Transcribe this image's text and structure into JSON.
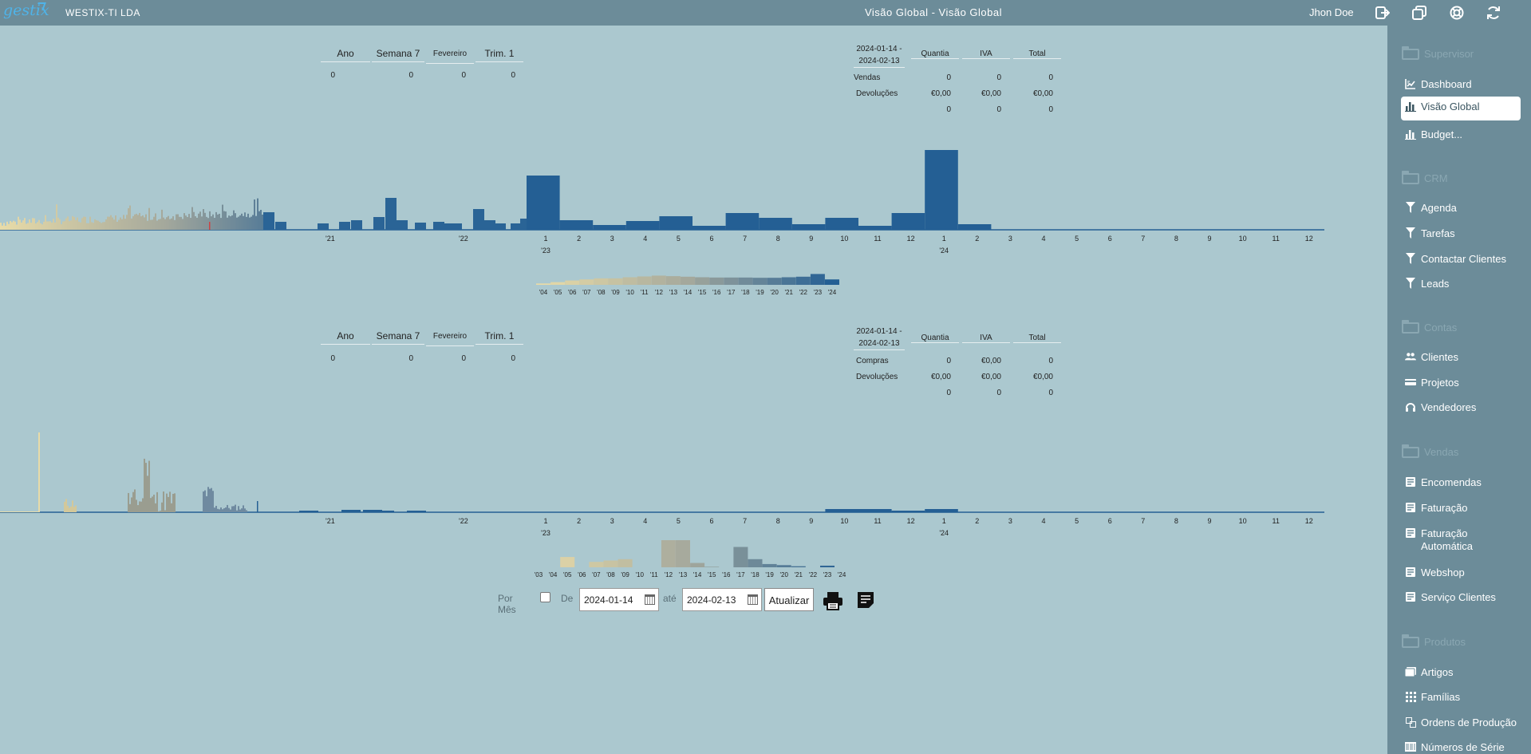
{
  "app": {
    "logo_text": "gestix",
    "company": "WESTIX-TI LDA",
    "title": "Visão Global - Visão Global",
    "user": "Jhon Doe",
    "toolbar_icons": [
      "logout-icon",
      "windows-icon",
      "help-lifebuoy-icon",
      "refresh-icon"
    ]
  },
  "sidebar": {
    "sections": [
      {
        "label": "Supervisor",
        "items": [
          {
            "label": "Dashboard",
            "icon": "dashboard-chart-icon",
            "active": false
          },
          {
            "label": "Visão Global",
            "icon": "bar-chart-icon",
            "active": true
          },
          {
            "label": "Budget...",
            "icon": "bar-chart-icon",
            "active": false
          }
        ]
      },
      {
        "label": "CRM",
        "items": [
          {
            "label": "Agenda",
            "icon": "funnel-icon"
          },
          {
            "label": "Tarefas",
            "icon": "funnel-icon"
          },
          {
            "label": "Contactar Clientes",
            "icon": "funnel-icon"
          },
          {
            "label": "Leads",
            "icon": "funnel-icon"
          }
        ]
      },
      {
        "label": "Contas",
        "items": [
          {
            "label": "Clientes",
            "icon": "users-icon"
          },
          {
            "label": "Projetos",
            "icon": "card-icon"
          },
          {
            "label": "Vendedores",
            "icon": "headset-icon"
          }
        ]
      },
      {
        "label": "Vendas",
        "items": [
          {
            "label": "Encomendas",
            "icon": "document-icon"
          },
          {
            "label": "Faturação",
            "icon": "document-icon"
          },
          {
            "label": "Faturação Automática",
            "icon": "document-icon"
          },
          {
            "label": "Webshop",
            "icon": "document-icon"
          },
          {
            "label": "Serviço Clientes",
            "icon": "document-icon"
          }
        ]
      },
      {
        "label": "Produtos",
        "items": [
          {
            "label": "Artigos",
            "icon": "articles-icon"
          },
          {
            "label": "Famílias",
            "icon": "grid-icon"
          },
          {
            "label": "Ordens de Produção",
            "icon": "production-icon"
          },
          {
            "label": "Números de Série",
            "icon": "barcode-icon"
          }
        ]
      }
    ]
  },
  "sales": {
    "period_headers": [
      "Ano",
      "Semana 7",
      "Fevereiro",
      "Trim. 1"
    ],
    "period_values": [
      "0",
      "0",
      "0",
      "0"
    ],
    "totals": {
      "period": "2024-01-14 - 2024-02-13",
      "headers": [
        "Quantia",
        "IVA",
        "Total"
      ],
      "rows": [
        {
          "label": "Vendas",
          "values": [
            "0",
            "0",
            "0"
          ]
        },
        {
          "label": "Devoluções",
          "values": [
            "€0,00",
            "€0,00",
            "€0,00"
          ]
        },
        {
          "label": "",
          "values": [
            "0",
            "0",
            "0"
          ]
        }
      ]
    }
  },
  "purchases": {
    "period_headers": [
      "Ano",
      "Semana 7",
      "Fevereiro",
      "Trim. 1"
    ],
    "period_values": [
      "0",
      "0",
      "0",
      "0"
    ],
    "totals": {
      "period": "2024-01-14 - 2024-02-13",
      "headers": [
        "Quantia",
        "IVA",
        "Total"
      ],
      "rows": [
        {
          "label": "Compras",
          "values": [
            "0",
            "€0,00",
            "0"
          ]
        },
        {
          "label": "Devoluções",
          "values": [
            "€0,00",
            "€0,00",
            "€0,00"
          ]
        },
        {
          "label": "",
          "values": [
            "0",
            "0",
            "0"
          ]
        }
      ]
    }
  },
  "controls": {
    "per_month_label": "Por Mês",
    "per_month_checked": false,
    "from_label": "De",
    "from_value": "2024-01-14",
    "to_label": "até",
    "to_value": "2024-02-13",
    "update_label": "Atualizar",
    "print_icon": "printer-icon",
    "report_icon": "report-icon"
  },
  "chart_data": [
    {
      "type": "bar",
      "name": "sales-timeline",
      "x_tick_labels": [
        "'21",
        "'22",
        "1",
        "2",
        "3",
        "4",
        "5",
        "6",
        "7",
        "8",
        "9",
        "10",
        "11",
        "12",
        "1",
        "2",
        "3",
        "4",
        "5",
        "6",
        "7",
        "8",
        "9",
        "10",
        "11",
        "12"
      ],
      "x_year_labels": [
        {
          "under": "1",
          "label": "'23",
          "index": 2
        },
        {
          "under": "1",
          "label": "'24",
          "index": 14
        }
      ],
      "monthly_2023_2024": {
        "categories": [
          "1",
          "2",
          "3",
          "4",
          "5",
          "6",
          "7",
          "8",
          "9",
          "10",
          "11",
          "12",
          "1",
          "2",
          "3",
          "4",
          "5",
          "6",
          "7",
          "8",
          "9",
          "10",
          "11",
          "12"
        ],
        "values": [
          68,
          12,
          6,
          11,
          17,
          5,
          21,
          15,
          7,
          15,
          5,
          21,
          100,
          7,
          0,
          0,
          0,
          0,
          0,
          0,
          0,
          0,
          0,
          0
        ]
      },
      "grid": false
    },
    {
      "type": "bar",
      "name": "sales-by-year",
      "categories": [
        "'04",
        "'05",
        "'06",
        "'07",
        "'08",
        "'09",
        "'10",
        "'11",
        "'12",
        "'13",
        "'14",
        "'15",
        "'16",
        "'17",
        "'18",
        "'19",
        "'20",
        "'21",
        "'22",
        "'23",
        "'24"
      ],
      "values": [
        5,
        10,
        16,
        20,
        24,
        24,
        28,
        31,
        34,
        32,
        30,
        28,
        27,
        27,
        27,
        26,
        26,
        28,
        30,
        40,
        20
      ]
    },
    {
      "type": "bar",
      "name": "purchases-timeline",
      "x_tick_labels": [
        "'21",
        "'22",
        "1",
        "2",
        "3",
        "4",
        "5",
        "6",
        "7",
        "8",
        "9",
        "10",
        "11",
        "12",
        "1",
        "2",
        "3",
        "4",
        "5",
        "6",
        "7",
        "8",
        "9",
        "10",
        "11",
        "12"
      ],
      "x_year_labels": [
        {
          "under": "1",
          "label": "'23",
          "index": 2
        },
        {
          "under": "1",
          "label": "'24",
          "index": 14
        }
      ],
      "monthly_2023_2024": {
        "categories": [
          "1",
          "2",
          "3",
          "4",
          "5",
          "6",
          "7",
          "8",
          "9",
          "10",
          "11",
          "12",
          "1",
          "2",
          "3",
          "4",
          "5",
          "6",
          "7",
          "8",
          "9",
          "10",
          "11",
          "12"
        ],
        "values": [
          0,
          0,
          0,
          0,
          0,
          0,
          0,
          0,
          0,
          4,
          4,
          2,
          4,
          0,
          0,
          0,
          0,
          0,
          0,
          0,
          0,
          0,
          0,
          0
        ]
      }
    },
    {
      "type": "bar",
      "name": "purchases-by-year",
      "categories": [
        "'03",
        "'04",
        "'05",
        "'06",
        "'07",
        "'08",
        "'09",
        "'10",
        "'11",
        "'12",
        "'13",
        "'14",
        "'15",
        "'16",
        "'17",
        "'18",
        "'19",
        "'20",
        "'21",
        "'22",
        "'23",
        "'24"
      ],
      "values": [
        0,
        0,
        38,
        0,
        20,
        25,
        30,
        0,
        0,
        100,
        100,
        16,
        2,
        0,
        75,
        30,
        12,
        8,
        4,
        0,
        6,
        0
      ]
    }
  ],
  "colors": {
    "background": "#abc8cf",
    "topbar": "#6c8c99",
    "bar_blue": "#245f94",
    "bar_dark": "#1f5a8f",
    "old_bar_start": "#e5d8a6",
    "old_bar_mid": "#9fa69a"
  }
}
